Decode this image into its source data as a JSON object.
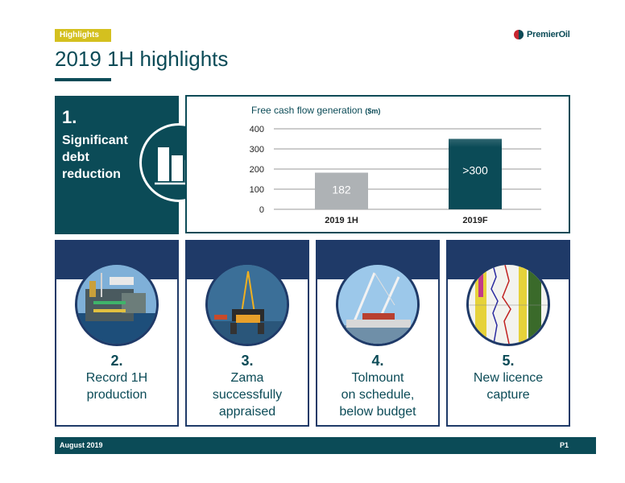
{
  "header": {
    "tag": "Highlights",
    "title": "2019 1H highlights",
    "logo_text": "PremierOil"
  },
  "highlight_1": {
    "number": "1.",
    "text": "Significant debt reduction",
    "icon": "bar-chart-down-dollar-icon"
  },
  "chart_data": {
    "type": "bar",
    "title": "Free cash flow generation",
    "unit": "($m)",
    "categories": [
      "2019 1H",
      "2019F"
    ],
    "values": [
      182,
      350
    ],
    "value_labels": [
      "182",
      ">300"
    ],
    "bar_colors": [
      "#aeb2b5",
      "#0b4b57"
    ],
    "ylim": [
      0,
      400
    ],
    "yticks": [
      "400",
      "300",
      "200",
      "100",
      "0"
    ],
    "grid": true
  },
  "cards": [
    {
      "number": "2.",
      "line1": "Record 1H",
      "line2": "production",
      "line3": "",
      "image": "offshore-platform-photo"
    },
    {
      "number": "3.",
      "line1": "Zama",
      "line2": "successfully",
      "line3": "appraised",
      "image": "drilling-rig-photo"
    },
    {
      "number": "4.",
      "line1": "Tolmount",
      "line2": "on schedule,",
      "line3": "below budget",
      "image": "construction-cranes-photo"
    },
    {
      "number": "5.",
      "line1": "New licence",
      "line2": "capture",
      "line3": "",
      "image": "well-log-photo"
    }
  ],
  "footer": {
    "date": "August 2019",
    "page": "P1"
  },
  "colors": {
    "teal": "#0b4b57",
    "navy": "#1f3a68",
    "gold": "#d4c01f",
    "grey_bar": "#aeb2b5"
  }
}
